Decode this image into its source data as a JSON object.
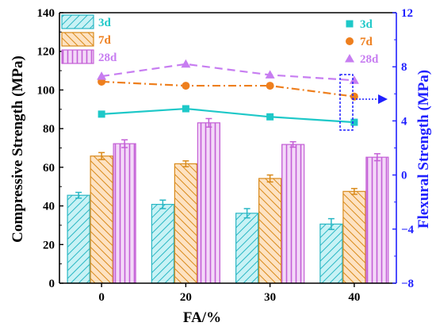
{
  "chart_data": {
    "type": "bar",
    "categories": [
      "0",
      "20",
      "30",
      "40"
    ],
    "xlabel": "FA/%",
    "ylabel": "Compressive Strength (MPa)",
    "y2label": "Flexural Strength (MPa)",
    "ylim": [
      0,
      140
    ],
    "y_ticks": [
      "0",
      "20",
      "40",
      "60",
      "80",
      "100",
      "120",
      "140"
    ],
    "y2lim": [
      -8,
      12
    ],
    "y2_ticks": [
      "−8",
      "−4",
      "0",
      "4",
      "8",
      "12"
    ],
    "legend_bars_position": "top-left",
    "legend_lines_position": "top-right",
    "bar_series": [
      {
        "name": "3d",
        "values": [
          45.5,
          40.8,
          36.2,
          30.6
        ],
        "errors": [
          1.5,
          2.2,
          2.4,
          2.8
        ],
        "color": "#29b7c4",
        "fill": "#c8f2f5",
        "pattern": "diagonal-forward"
      },
      {
        "name": "7d",
        "values": [
          65.8,
          61.8,
          54.2,
          47.5
        ],
        "errors": [
          1.8,
          1.5,
          1.8,
          1.5
        ],
        "color": "#d98a1a",
        "fill": "#fde2c2",
        "pattern": "diagonal-backward"
      },
      {
        "name": "28d",
        "values": [
          72.2,
          83.0,
          71.8,
          65.2
        ],
        "errors": [
          2.0,
          2.2,
          1.4,
          1.8
        ],
        "color": "#c45fd6",
        "fill": "#f3d9f8",
        "pattern": "vertical"
      }
    ],
    "line_series": [
      {
        "name": "3d",
        "values": [
          4.5,
          4.9,
          4.3,
          3.9
        ],
        "color": "#1ec8c8",
        "marker": "square",
        "dash": "solid"
      },
      {
        "name": "7d",
        "values": [
          6.9,
          6.6,
          6.6,
          5.8
        ],
        "color": "#ee7f1e",
        "marker": "circle",
        "dash": "dash-dot"
      },
      {
        "name": "28d",
        "values": [
          7.3,
          8.2,
          7.4,
          7.0
        ],
        "color": "#c77df1",
        "marker": "triangle",
        "dash": "dashed"
      }
    ]
  }
}
